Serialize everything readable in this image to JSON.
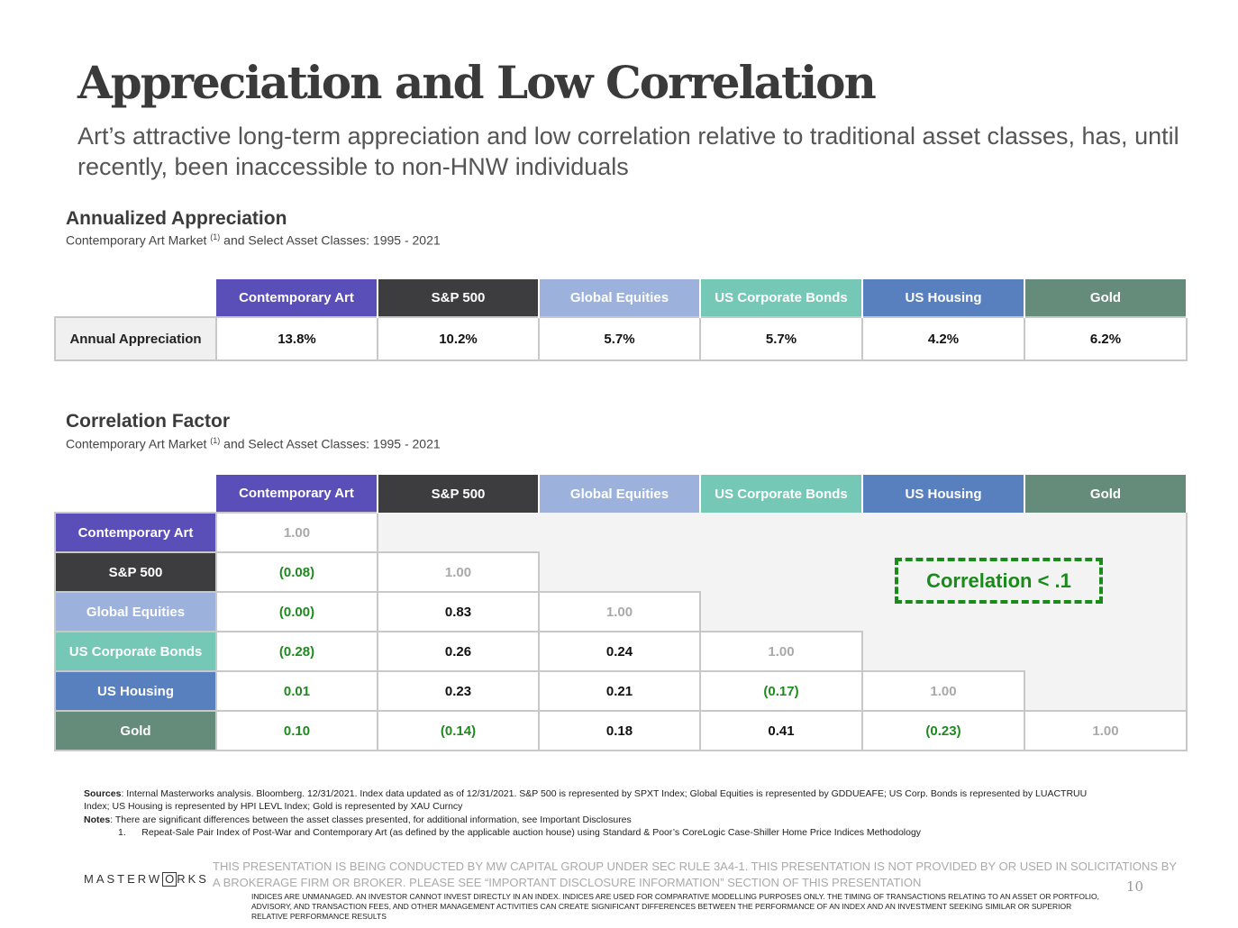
{
  "title": "Appreciation and Low Correlation",
  "subtitle": "Art’s attractive long-term appreciation and low correlation relative to traditional asset classes, has, until recently, been inaccessible to non-HNW individuals",
  "appreciation": {
    "title": "Annualized Appreciation",
    "subtitle_pre": "Contemporary Art Market ",
    "subtitle_sup": "(1)",
    "subtitle_post": " and Select Asset Classes: 1995 - 2021",
    "row_label": "Annual Appreciation",
    "columns": [
      "Contemporary Art",
      "S&P 500",
      "Global Equities",
      "US Corporate Bonds",
      "US Housing",
      "Gold"
    ],
    "values": [
      "13.8%",
      "10.2%",
      "5.7%",
      "5.7%",
      "4.2%",
      "6.2%"
    ]
  },
  "correlation": {
    "title": "Correlation Factor",
    "subtitle_pre": "Contemporary Art Market ",
    "subtitle_sup": "(1)",
    "subtitle_post": " and Select Asset Classes: 1995 - 2021",
    "columns": [
      "Contemporary Art",
      "S&P 500",
      "Global Equities",
      "US Corporate Bonds",
      "US Housing",
      "Gold"
    ],
    "rows": [
      {
        "label": "Contemporary Art",
        "values": [
          "1.00"
        ]
      },
      {
        "label": "S&P 500",
        "values": [
          "(0.08)",
          "1.00"
        ]
      },
      {
        "label": "Global Equities",
        "values": [
          "(0.00)",
          "0.83",
          "1.00"
        ]
      },
      {
        "label": "US Corporate Bonds",
        "values": [
          "(0.28)",
          "0.26",
          "0.24",
          "1.00"
        ]
      },
      {
        "label": "US Housing",
        "values": [
          "0.01",
          "0.23",
          "0.21",
          "(0.17)",
          "1.00"
        ]
      },
      {
        "label": "Gold",
        "values": [
          "0.10",
          "(0.14)",
          "0.18",
          "0.41",
          "(0.23)",
          "1.00"
        ]
      }
    ],
    "low_correlation_cells": [
      "0-1",
      "0-2",
      "0-3",
      "0-4",
      "0-5",
      "3-4",
      "1-5",
      "4-5"
    ],
    "badge": "Correlation < .1"
  },
  "colors": {
    "contemporary_art": "#5a4fb9",
    "sp500": "#3d3d3f",
    "global_equities": "#9cb2dc",
    "us_corporate_bonds": "#74c8b5",
    "us_housing": "#5880bf",
    "gold": "#658b7b",
    "low_correlation": "#1e8a1e"
  },
  "footer": {
    "sources_label": "Sources",
    "sources_text": ": Internal Masterworks analysis. Bloomberg. 12/31/2021. Index data updated as of 12/31/2021. S&P 500 is represented by SPXT Index; Global Equities is represented by GDDUEAFE; US Corp. Bonds is represented by LUACTRUU Index; US Housing is represented by HPI LEVL Index; Gold is represented by XAU Curncy",
    "notes_label": "Notes",
    "notes_text": ": There are significant differences between the asset classes presented, for additional information, see Important Disclosures",
    "note1_num": "1.",
    "note1_text": "Repeat-Sale Pair Index of Post-War and Contemporary Art (as defined by the applicable auction house) using Standard & Poor’s CoreLogic Case-Shiller Home Price Indices Methodology",
    "logo_pre": "MASTERW",
    "logo_o": "O",
    "logo_post": "RKS",
    "disclaimer1": "THIS PRESENTATION  IS BEING CONDUCTED BY MW CAPITAL GROUP UNDER SEC RULE 3A4-1. THIS PRESENTATION  IS NOT PROVIDED BY OR USED IN SOLICITATIONS BY A BROKERAGE FIRM OR BROKER. PLEASE SEE “IMPORTANT DISCLOSURE INFORMATION” SECTION OF THIS PRESENTATION",
    "disclaimer2": "INDICES ARE UNMANAGED. AN INVESTOR CANNOT INVEST DIRECTLY IN AN INDEX. INDICES ARE USED FOR COMPARATIVE MODELLING PURPOSES ONLY. THE TIMING OF TRANSACTIONS RELATING TO AN ASSET OR PORTFOLIO, ADVISORY, AND TRANSACTION FEES, AND OTHER MANAGEMENT ACTIVITIES CAN CREATE SIGNIFICANT DIFFERENCES BETWEEN THE PERFORMANCE OF AN INDEX AND AN INVESTMENT SEEKING SIMILAR OR SUPERIOR RELATIVE PERFORMANCE RESULTS",
    "page_number": "10"
  }
}
